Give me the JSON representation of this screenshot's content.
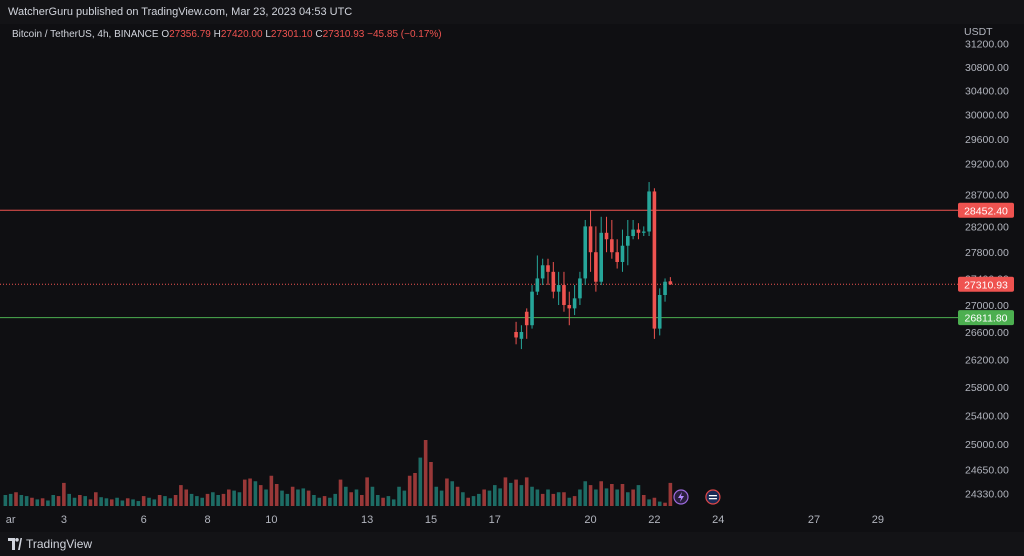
{
  "header": {
    "publish_line": "WatcherGuru published on TradingView.com, Mar 23, 2023 04:53 UTC",
    "symbol": "Bitcoin / TetherUS, 4h, BINANCE",
    "o_label": "O",
    "o_value": "27356.79",
    "h_label": "H",
    "h_value": "27420.00",
    "l_label": "L",
    "l_value": "27301.10",
    "c_label": "C",
    "c_value": "27310.93",
    "change": "−45.85 (−0.17%)",
    "currency": "USDT"
  },
  "footer": {
    "brand": "TradingView",
    "logo_icon": "tradingview-logo-icon"
  },
  "colors": {
    "background": "#0f0f12",
    "up": "#26a69a",
    "down": "#ef5350",
    "resistance_line": "#ef5350",
    "support_line": "#4caf50",
    "text": "#d1d4dc",
    "axis_text": "#b2b5be"
  },
  "chart_data": {
    "type": "candlestick",
    "title": "Bitcoin / TetherUS, 4h, BINANCE",
    "ylabel": "USDT",
    "y_scale": "log",
    "ylim": [
      24160,
      31400
    ],
    "y_ticks": [
      "31200.00",
      "30800.00",
      "30400.00",
      "30000.00",
      "29600.00",
      "29200.00",
      "28700.00",
      "28200.00",
      "27800.00",
      "27400.00",
      "27000.00",
      "26600.00",
      "26200.00",
      "25800.00",
      "25400.00",
      "25000.00",
      "24650.00",
      "24330.00"
    ],
    "x_ticks": [
      {
        "label": "ar",
        "idx": -1
      },
      {
        "label": "3",
        "idx": 9
      },
      {
        "label": "6",
        "idx": 24
      },
      {
        "label": "8",
        "idx": 36
      },
      {
        "label": "10",
        "idx": 48
      },
      {
        "label": "13",
        "idx": 66
      },
      {
        "label": "15",
        "idx": 78
      },
      {
        "label": "17",
        "idx": 90
      },
      {
        "label": "20",
        "idx": 108
      },
      {
        "label": "22",
        "idx": 120
      },
      {
        "label": "24",
        "idx": 132
      },
      {
        "label": "27",
        "idx": 150
      },
      {
        "label": "29",
        "idx": 162
      }
    ],
    "horizontal_lines": [
      {
        "value": 28452.4,
        "label": "28452.40",
        "style": "solid",
        "color": "#ef5350"
      },
      {
        "value": 27310.93,
        "label": "27310.93",
        "style": "dotted",
        "color": "#ef5350"
      },
      {
        "value": 26811.8,
        "label": "26811.80",
        "style": "solid",
        "color": "#4caf50"
      }
    ],
    "candles": [
      {
        "i": 94,
        "o": 26600,
        "h": 26750,
        "l": 26420,
        "c": 26520
      },
      {
        "i": 95,
        "o": 26500,
        "h": 26700,
        "l": 26350,
        "c": 26600
      },
      {
        "i": 96,
        "o": 26900,
        "h": 26950,
        "l": 26500,
        "c": 26700
      },
      {
        "i": 97,
        "o": 26700,
        "h": 27300,
        "l": 26650,
        "c": 27200
      },
      {
        "i": 98,
        "o": 27200,
        "h": 27750,
        "l": 27150,
        "c": 27400
      },
      {
        "i": 99,
        "o": 27400,
        "h": 27700,
        "l": 27300,
        "c": 27600
      },
      {
        "i": 100,
        "o": 27600,
        "h": 27700,
        "l": 27300,
        "c": 27500
      },
      {
        "i": 101,
        "o": 27500,
        "h": 27650,
        "l": 27100,
        "c": 27200
      },
      {
        "i": 102,
        "o": 27200,
        "h": 27500,
        "l": 27000,
        "c": 27300
      },
      {
        "i": 103,
        "o": 27300,
        "h": 27500,
        "l": 26900,
        "c": 27000
      },
      {
        "i": 104,
        "o": 27000,
        "h": 27200,
        "l": 26700,
        "c": 26950
      },
      {
        "i": 105,
        "o": 26950,
        "h": 27300,
        "l": 26850,
        "c": 27100
      },
      {
        "i": 106,
        "o": 27100,
        "h": 27500,
        "l": 27000,
        "c": 27400
      },
      {
        "i": 107,
        "o": 27400,
        "h": 28300,
        "l": 27300,
        "c": 28200
      },
      {
        "i": 108,
        "o": 28200,
        "h": 28450,
        "l": 27500,
        "c": 27800
      },
      {
        "i": 109,
        "o": 27800,
        "h": 28200,
        "l": 27200,
        "c": 27350
      },
      {
        "i": 110,
        "o": 27350,
        "h": 28350,
        "l": 27300,
        "c": 28100
      },
      {
        "i": 111,
        "o": 28100,
        "h": 28350,
        "l": 27800,
        "c": 28000
      },
      {
        "i": 112,
        "o": 28000,
        "h": 28300,
        "l": 27700,
        "c": 27800
      },
      {
        "i": 113,
        "o": 27800,
        "h": 28000,
        "l": 27550,
        "c": 27650
      },
      {
        "i": 114,
        "o": 27650,
        "h": 28150,
        "l": 27500,
        "c": 27900
      },
      {
        "i": 115,
        "o": 27900,
        "h": 28300,
        "l": 27600,
        "c": 28050
      },
      {
        "i": 116,
        "o": 28050,
        "h": 28300,
        "l": 28000,
        "c": 28150
      },
      {
        "i": 117,
        "o": 28150,
        "h": 28250,
        "l": 28000,
        "c": 28100
      },
      {
        "i": 118,
        "o": 28100,
        "h": 28200,
        "l": 28050,
        "c": 28120
      },
      {
        "i": 119,
        "o": 28120,
        "h": 28900,
        "l": 28050,
        "c": 28750
      },
      {
        "i": 120,
        "o": 28750,
        "h": 28800,
        "l": 26500,
        "c": 26650
      },
      {
        "i": 121,
        "o": 26650,
        "h": 27250,
        "l": 26550,
        "c": 27150
      },
      {
        "i": 122,
        "o": 27150,
        "h": 27400,
        "l": 27050,
        "c": 27350
      },
      {
        "i": 123,
        "o": 27356.79,
        "h": 27420.0,
        "l": 27301.1,
        "c": 27310.93
      }
    ],
    "volume": {
      "vmax": 100,
      "bars": [
        {
          "i": -2,
          "v": 20,
          "up": true
        },
        {
          "i": -1,
          "v": 22,
          "up": true
        },
        {
          "i": 0,
          "v": 25,
          "up": false
        },
        {
          "i": 1,
          "v": 20,
          "up": true
        },
        {
          "i": 2,
          "v": 18,
          "up": true
        },
        {
          "i": 3,
          "v": 15,
          "up": false
        },
        {
          "i": 4,
          "v": 12,
          "up": true
        },
        {
          "i": 5,
          "v": 14,
          "up": false
        },
        {
          "i": 6,
          "v": 10,
          "up": true
        },
        {
          "i": 7,
          "v": 20,
          "up": true
        },
        {
          "i": 8,
          "v": 18,
          "up": false
        },
        {
          "i": 9,
          "v": 42,
          "up": false
        },
        {
          "i": 10,
          "v": 22,
          "up": true
        },
        {
          "i": 11,
          "v": 15,
          "up": true
        },
        {
          "i": 12,
          "v": 20,
          "up": false
        },
        {
          "i": 13,
          "v": 18,
          "up": true
        },
        {
          "i": 14,
          "v": 12,
          "up": false
        },
        {
          "i": 15,
          "v": 25,
          "up": false
        },
        {
          "i": 16,
          "v": 16,
          "up": true
        },
        {
          "i": 17,
          "v": 14,
          "up": true
        },
        {
          "i": 18,
          "v": 12,
          "up": false
        },
        {
          "i": 19,
          "v": 15,
          "up": true
        },
        {
          "i": 20,
          "v": 10,
          "up": true
        },
        {
          "i": 21,
          "v": 14,
          "up": false
        },
        {
          "i": 22,
          "v": 12,
          "up": true
        },
        {
          "i": 23,
          "v": 9,
          "up": true
        },
        {
          "i": 24,
          "v": 18,
          "up": false
        },
        {
          "i": 25,
          "v": 15,
          "up": true
        },
        {
          "i": 26,
          "v": 12,
          "up": true
        },
        {
          "i": 27,
          "v": 20,
          "up": false
        },
        {
          "i": 28,
          "v": 18,
          "up": true
        },
        {
          "i": 29,
          "v": 14,
          "up": true
        },
        {
          "i": 30,
          "v": 20,
          "up": false
        },
        {
          "i": 31,
          "v": 38,
          "up": false
        },
        {
          "i": 32,
          "v": 30,
          "up": false
        },
        {
          "i": 33,
          "v": 22,
          "up": true
        },
        {
          "i": 34,
          "v": 18,
          "up": true
        },
        {
          "i": 35,
          "v": 15,
          "up": true
        },
        {
          "i": 36,
          "v": 22,
          "up": false
        },
        {
          "i": 37,
          "v": 25,
          "up": true
        },
        {
          "i": 38,
          "v": 20,
          "up": true
        },
        {
          "i": 39,
          "v": 22,
          "up": false
        },
        {
          "i": 40,
          "v": 30,
          "up": false
        },
        {
          "i": 41,
          "v": 28,
          "up": true
        },
        {
          "i": 42,
          "v": 25,
          "up": true
        },
        {
          "i": 43,
          "v": 48,
          "up": false
        },
        {
          "i": 44,
          "v": 50,
          "up": false
        },
        {
          "i": 45,
          "v": 45,
          "up": true
        },
        {
          "i": 46,
          "v": 38,
          "up": false
        },
        {
          "i": 47,
          "v": 30,
          "up": true
        },
        {
          "i": 48,
          "v": 55,
          "up": false
        },
        {
          "i": 49,
          "v": 40,
          "up": false
        },
        {
          "i": 50,
          "v": 28,
          "up": true
        },
        {
          "i": 51,
          "v": 22,
          "up": true
        },
        {
          "i": 52,
          "v": 35,
          "up": false
        },
        {
          "i": 53,
          "v": 30,
          "up": true
        },
        {
          "i": 54,
          "v": 32,
          "up": true
        },
        {
          "i": 55,
          "v": 28,
          "up": false
        },
        {
          "i": 56,
          "v": 20,
          "up": true
        },
        {
          "i": 57,
          "v": 15,
          "up": true
        },
        {
          "i": 58,
          "v": 18,
          "up": false
        },
        {
          "i": 59,
          "v": 15,
          "up": true
        },
        {
          "i": 60,
          "v": 22,
          "up": true
        },
        {
          "i": 61,
          "v": 48,
          "up": false
        },
        {
          "i": 62,
          "v": 35,
          "up": true
        },
        {
          "i": 63,
          "v": 25,
          "up": false
        },
        {
          "i": 64,
          "v": 30,
          "up": true
        },
        {
          "i": 65,
          "v": 20,
          "up": false
        },
        {
          "i": 66,
          "v": 52,
          "up": false
        },
        {
          "i": 67,
          "v": 35,
          "up": true
        },
        {
          "i": 68,
          "v": 20,
          "up": true
        },
        {
          "i": 69,
          "v": 15,
          "up": false
        },
        {
          "i": 70,
          "v": 18,
          "up": true
        },
        {
          "i": 71,
          "v": 12,
          "up": true
        },
        {
          "i": 72,
          "v": 35,
          "up": true
        },
        {
          "i": 73,
          "v": 28,
          "up": true
        },
        {
          "i": 74,
          "v": 55,
          "up": false
        },
        {
          "i": 75,
          "v": 60,
          "up": false
        },
        {
          "i": 76,
          "v": 88,
          "up": true
        },
        {
          "i": 77,
          "v": 120,
          "up": false
        },
        {
          "i": 78,
          "v": 80,
          "up": false
        },
        {
          "i": 79,
          "v": 35,
          "up": true
        },
        {
          "i": 80,
          "v": 28,
          "up": true
        },
        {
          "i": 81,
          "v": 50,
          "up": false
        },
        {
          "i": 82,
          "v": 45,
          "up": true
        },
        {
          "i": 83,
          "v": 35,
          "up": false
        },
        {
          "i": 84,
          "v": 25,
          "up": true
        },
        {
          "i": 85,
          "v": 15,
          "up": false
        },
        {
          "i": 86,
          "v": 18,
          "up": true
        },
        {
          "i": 87,
          "v": 22,
          "up": true
        },
        {
          "i": 88,
          "v": 30,
          "up": false
        },
        {
          "i": 89,
          "v": 28,
          "up": true
        },
        {
          "i": 90,
          "v": 38,
          "up": true
        },
        {
          "i": 91,
          "v": 32,
          "up": true
        },
        {
          "i": 92,
          "v": 52,
          "up": false
        },
        {
          "i": 93,
          "v": 42,
          "up": true
        },
        {
          "i": 94,
          "v": 48,
          "up": false
        },
        {
          "i": 95,
          "v": 38,
          "up": true
        },
        {
          "i": 96,
          "v": 52,
          "up": false
        },
        {
          "i": 97,
          "v": 35,
          "up": true
        },
        {
          "i": 98,
          "v": 30,
          "up": true
        },
        {
          "i": 99,
          "v": 22,
          "up": false
        },
        {
          "i": 100,
          "v": 30,
          "up": true
        },
        {
          "i": 101,
          "v": 22,
          "up": false
        },
        {
          "i": 102,
          "v": 25,
          "up": true
        },
        {
          "i": 103,
          "v": 25,
          "up": false
        },
        {
          "i": 104,
          "v": 15,
          "up": true
        },
        {
          "i": 105,
          "v": 18,
          "up": false
        },
        {
          "i": 106,
          "v": 30,
          "up": true
        },
        {
          "i": 107,
          "v": 45,
          "up": true
        },
        {
          "i": 108,
          "v": 38,
          "up": false
        },
        {
          "i": 109,
          "v": 30,
          "up": true
        },
        {
          "i": 110,
          "v": 45,
          "up": false
        },
        {
          "i": 111,
          "v": 32,
          "up": true
        },
        {
          "i": 112,
          "v": 40,
          "up": false
        },
        {
          "i": 113,
          "v": 30,
          "up": true
        },
        {
          "i": 114,
          "v": 40,
          "up": false
        },
        {
          "i": 115,
          "v": 25,
          "up": true
        },
        {
          "i": 116,
          "v": 30,
          "up": false
        },
        {
          "i": 117,
          "v": 38,
          "up": true
        },
        {
          "i": 118,
          "v": 20,
          "up": false
        },
        {
          "i": 119,
          "v": 12,
          "up": true
        },
        {
          "i": 120,
          "v": 15,
          "up": false
        },
        {
          "i": 121,
          "v": 8,
          "up": true
        },
        {
          "i": 122,
          "v": 6,
          "up": false
        },
        {
          "i": 123,
          "v": 42,
          "up": false
        }
      ]
    },
    "event_markers": [
      {
        "i": 125,
        "icon": "lightning-event-icon"
      },
      {
        "i": 131,
        "icon": "us-flag-event-icon"
      }
    ]
  }
}
